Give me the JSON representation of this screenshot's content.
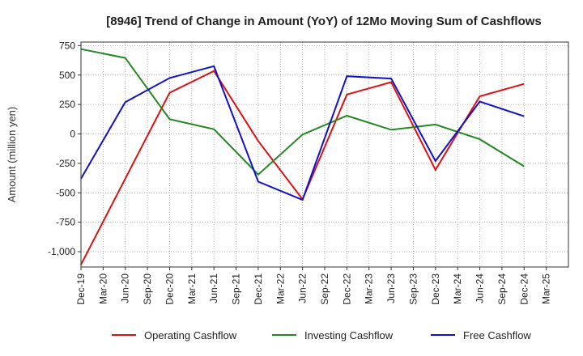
{
  "chart_data": {
    "type": "line",
    "title": "[8946]  Trend of Change in Amount (YoY) of 12Mo Moving Sum of Cashflows",
    "xlabel": "",
    "ylabel": "Amount (million yen)",
    "ylim": [
      -1130,
      780
    ],
    "yticks": [
      750,
      500,
      250,
      0,
      -250,
      -500,
      -750,
      -1000
    ],
    "ytick_labels": [
      "750",
      "500",
      "250",
      "0",
      "-250",
      "-500",
      "-750",
      "-1,000"
    ],
    "categories": [
      "Dec-19",
      "Mar-20",
      "Jun-20",
      "Sep-20",
      "Dec-20",
      "Mar-21",
      "Jun-21",
      "Sep-21",
      "Dec-21",
      "Mar-22",
      "Jun-22",
      "Sep-22",
      "Dec-22",
      "Mar-23",
      "Jun-23",
      "Sep-23",
      "Dec-23",
      "Mar-24",
      "Jun-24",
      "Sep-24",
      "Dec-24",
      "Mar-25"
    ],
    "grid": true,
    "legend_position": "bottom",
    "series": [
      {
        "name": "Operating Cashflow",
        "color": "#dd1111",
        "points": [
          [
            "Dec-19",
            -1110
          ],
          [
            "Jun-20",
            -380
          ],
          [
            "Dec-20",
            350
          ],
          [
            "Jun-21",
            535
          ],
          [
            "Dec-21",
            -60
          ],
          [
            "Jun-22",
            -555
          ],
          [
            "Dec-22",
            335
          ],
          [
            "Jun-23",
            440
          ],
          [
            "Dec-23",
            -305
          ],
          [
            "Jun-24",
            320
          ],
          [
            "Dec-24",
            425
          ]
        ]
      },
      {
        "name": "Investing Cashflow",
        "color": "#228822",
        "points": [
          [
            "Dec-19",
            720
          ],
          [
            "Jun-20",
            645
          ],
          [
            "Dec-20",
            125
          ],
          [
            "Jun-21",
            40
          ],
          [
            "Dec-21",
            -345
          ],
          [
            "Jun-22",
            -5
          ],
          [
            "Dec-22",
            155
          ],
          [
            "Jun-23",
            35
          ],
          [
            "Dec-23",
            80
          ],
          [
            "Jun-24",
            -45
          ],
          [
            "Dec-24",
            -275
          ]
        ]
      },
      {
        "name": "Free Cashflow",
        "color": "#1111cc",
        "points": [
          [
            "Dec-19",
            -380
          ],
          [
            "Jun-20",
            270
          ],
          [
            "Dec-20",
            475
          ],
          [
            "Jun-21",
            575
          ],
          [
            "Dec-21",
            -405
          ],
          [
            "Jun-22",
            -560
          ],
          [
            "Dec-22",
            490
          ],
          [
            "Jun-23",
            470
          ],
          [
            "Dec-23",
            -230
          ],
          [
            "Jun-24",
            275
          ],
          [
            "Dec-24",
            150
          ]
        ]
      }
    ]
  }
}
